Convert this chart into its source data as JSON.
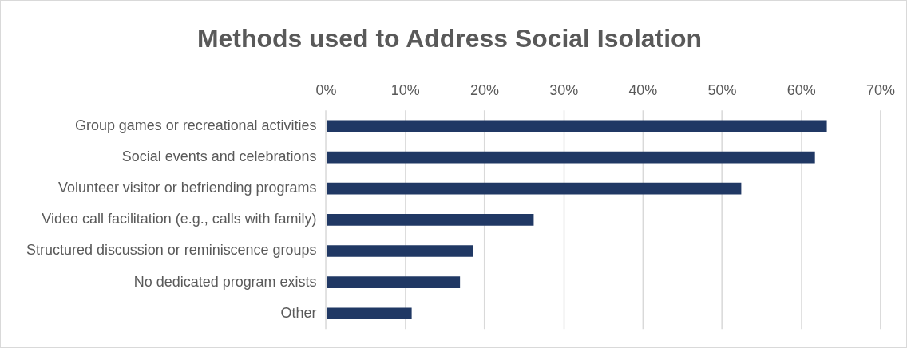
{
  "chart_data": {
    "type": "bar",
    "orientation": "horizontal",
    "title": "Methods used to Address Social Isolation",
    "categories": [
      "Group games or recreational activities",
      "Social events and celebrations",
      "Volunteer visitor or befriending programs",
      "Video call facilitation (e.g., calls with family)",
      "Structured discussion or reminiscence groups",
      "No dedicated program exists",
      "Other"
    ],
    "values": [
      63.2,
      61.7,
      52.4,
      26.2,
      18.5,
      16.9,
      10.8
    ],
    "color": "#203864",
    "xlim": [
      0,
      70
    ],
    "xticks": [
      {
        "value": 0,
        "label": "0%"
      },
      {
        "value": 10,
        "label": "10%"
      },
      {
        "value": 20,
        "label": "20%"
      },
      {
        "value": 30,
        "label": "30%"
      },
      {
        "value": 40,
        "label": "40%"
      },
      {
        "value": 50,
        "label": "50%"
      },
      {
        "value": 60,
        "label": "60%"
      },
      {
        "value": 70,
        "label": "70%"
      }
    ],
    "grid": "x",
    "legend": false
  }
}
